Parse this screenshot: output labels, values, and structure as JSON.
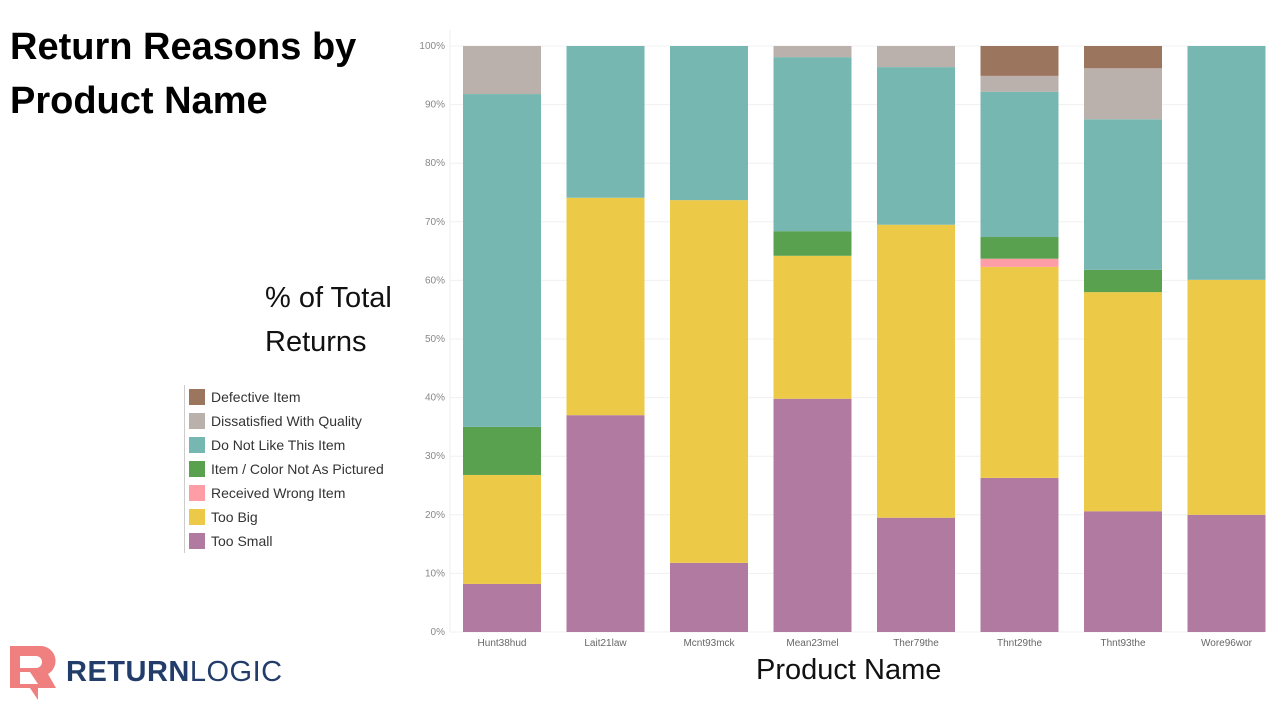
{
  "chart_data": {
    "type": "bar",
    "stacked": true,
    "title": "Return Reasons by Product Name",
    "xlabel": "Product Name",
    "ylabel": "% of Total Returns",
    "ylim": [
      0,
      100
    ],
    "yticks": [
      "0%",
      "10%",
      "20%",
      "30%",
      "40%",
      "50%",
      "60%",
      "70%",
      "80%",
      "90%",
      "100%"
    ],
    "grid": true,
    "legend_placement": "left",
    "categories": [
      "Hunt38hud",
      "Lait21law",
      "Mcnt93mck",
      "Mean23mel",
      "Ther79the",
      "Thnt29the",
      "Thnt93the",
      "Wore96wor"
    ],
    "series": [
      {
        "name": "Too Small",
        "color": "#b07aa1",
        "values": [
          8.2,
          37.0,
          11.8,
          39.8,
          19.5,
          26.3,
          20.6,
          20.0
        ]
      },
      {
        "name": "Too Big",
        "color": "#edc948",
        "values": [
          18.6,
          37.1,
          61.9,
          24.4,
          50.0,
          36.0,
          37.4,
          40.1
        ]
      },
      {
        "name": "Received Wrong Item",
        "color": "#ff9da7",
        "values": [
          0,
          0,
          0,
          0,
          0,
          1.4,
          0,
          0
        ]
      },
      {
        "name": "Item / Color Not As Pictured",
        "color": "#59a14f",
        "values": [
          8.2,
          0,
          0,
          4.2,
          0,
          3.7,
          3.8,
          0
        ]
      },
      {
        "name": "Do Not Like This Item",
        "color": "#76b7b2",
        "values": [
          56.8,
          25.9,
          26.3,
          29.7,
          26.9,
          24.8,
          25.7,
          39.9
        ]
      },
      {
        "name": "Dissatisfied With Quality",
        "color": "#bab0ac",
        "values": [
          8.2,
          0,
          0,
          1.9,
          3.6,
          2.7,
          8.7,
          0
        ]
      },
      {
        "name": "Defective Item",
        "color": "#9c755f",
        "values": [
          0,
          0,
          0,
          0,
          0,
          5.1,
          3.8,
          0
        ]
      }
    ],
    "legend_order": [
      "Defective Item",
      "Dissatisfied With Quality",
      "Do Not Like This Item",
      "Item / Color Not As Pictured",
      "Received Wrong Item",
      "Too Big",
      "Too Small"
    ]
  },
  "logo": {
    "bold": "RETURN",
    "light": "LOGIC",
    "color": "#f08080"
  }
}
